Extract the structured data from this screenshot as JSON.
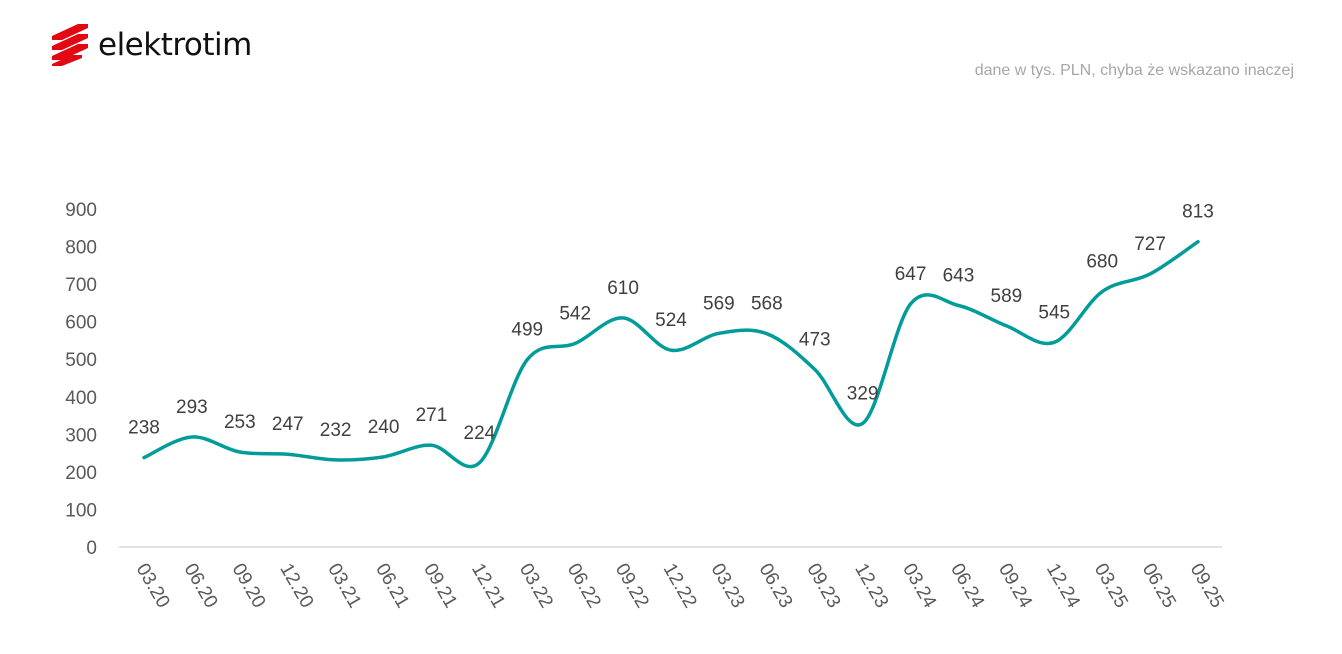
{
  "header": {
    "logo_text": "elektrotim",
    "note": "dane w tys. PLN, chyba że wskazano inaczej"
  },
  "colors": {
    "line": "#009C9A",
    "logo_red": "#E30613",
    "axis": "#D9D9D9"
  },
  "chart_data": {
    "type": "line",
    "title": "",
    "xlabel": "",
    "ylabel": "",
    "categories": [
      "03.20",
      "06.20",
      "09.20",
      "12.20",
      "03.21",
      "06.21",
      "09.21",
      "12.21",
      "03.22",
      "06.22",
      "09.22",
      "12.22",
      "03.23",
      "06.23",
      "09.23",
      "12.23",
      "03.24",
      "06.24",
      "09.24",
      "12.24",
      "03.25",
      "06.25",
      "09.25"
    ],
    "values": [
      238,
      293,
      253,
      247,
      232,
      240,
      271,
      224,
      499,
      542,
      610,
      524,
      569,
      568,
      473,
      329,
      647,
      643,
      589,
      545,
      680,
      727,
      813
    ],
    "ylim": [
      0,
      900
    ],
    "yticks": [
      0,
      100,
      200,
      300,
      400,
      500,
      600,
      700,
      800,
      900
    ],
    "grid": false,
    "legend": "none",
    "smooth": true
  }
}
